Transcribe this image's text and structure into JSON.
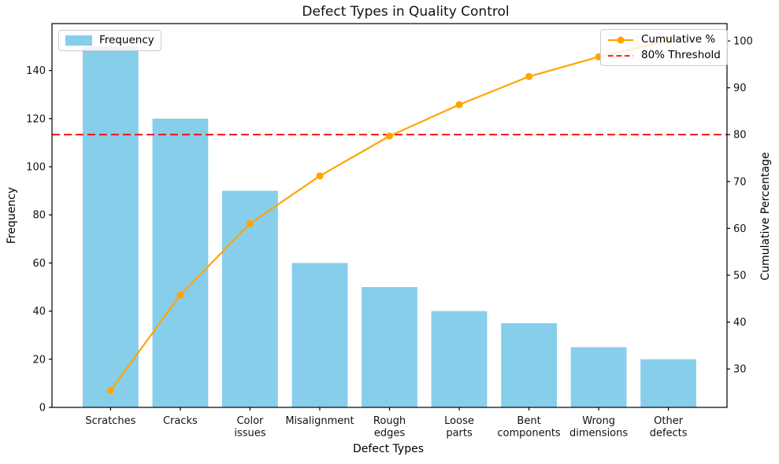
{
  "chart_data": {
    "type": "bar",
    "subtype": "pareto (bar + cumulative line, twin y-axes)",
    "title": "Defect Types in Quality Control",
    "xlabel": "Defect Types",
    "ylabel_left": "Frequency",
    "ylabel_right": "Cumulative Percentage",
    "categories": [
      "Scratches",
      "Cracks",
      "Color\nissues",
      "Misalignment",
      "Rough\nedges",
      "Loose\nparts",
      "Bent\ncomponents",
      "Wrong\ndimensions",
      "Other\ndefects"
    ],
    "series": [
      {
        "name": "Frequency",
        "type": "bar",
        "axis": "left",
        "color": "#87CEEB",
        "values": [
          150,
          120,
          90,
          60,
          50,
          40,
          35,
          25,
          20
        ]
      },
      {
        "name": "Cumulative %",
        "type": "line",
        "axis": "right",
        "color": "#FFA500",
        "marker": "circle",
        "values": [
          25.4,
          45.8,
          61.0,
          71.2,
          79.7,
          86.4,
          92.4,
          96.6,
          100.0
        ]
      }
    ],
    "threshold": {
      "label": "80% Threshold",
      "value": 80,
      "color": "#FF0000",
      "style": "dashed"
    },
    "left_axis": {
      "ticks": [
        0,
        20,
        40,
        60,
        80,
        100,
        120,
        140
      ],
      "range": [
        0,
        159.5
      ]
    },
    "right_axis": {
      "ticks": [
        30,
        40,
        50,
        60,
        70,
        80,
        90,
        100
      ],
      "range": [
        21.8,
        103.7
      ]
    },
    "grid": false,
    "legends": [
      {
        "position": "upper-left",
        "items": [
          "Frequency"
        ]
      },
      {
        "position": "upper-right",
        "items": [
          "Cumulative %",
          "80% Threshold"
        ]
      }
    ]
  }
}
